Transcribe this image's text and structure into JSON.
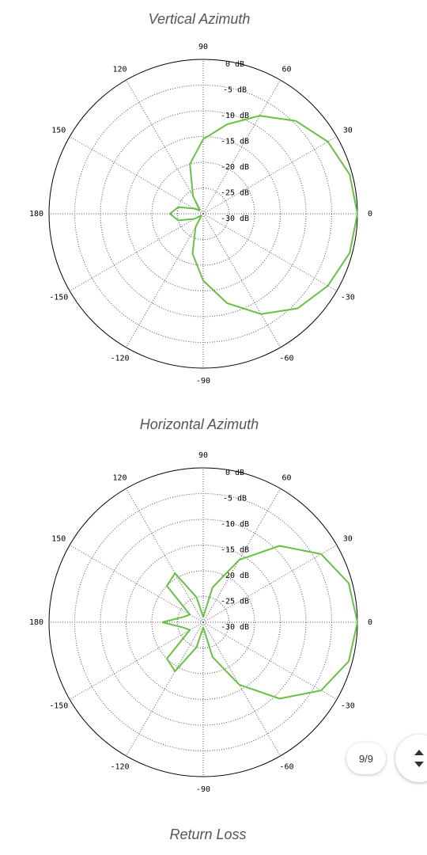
{
  "chart_data": [
    {
      "type": "polar",
      "title": "Vertical Azimuth",
      "theta": [
        -180,
        -165,
        -150,
        -135,
        -120,
        -105,
        -90,
        -75,
        -60,
        -45,
        -30,
        -15,
        0,
        15,
        30,
        45,
        60,
        75,
        90,
        105,
        120,
        135,
        150,
        165,
        180
      ],
      "r": [
        -23.5,
        -25,
        -28,
        -29.5,
        -27,
        -22,
        -17,
        -12,
        -7.5,
        -4,
        -2,
        -0.5,
        0,
        -0.5,
        -2,
        -4.5,
        -8,
        -12,
        -15.5,
        -20,
        -26,
        -29,
        -28,
        -25,
        -23.5
      ],
      "color": "#6abf45",
      "rlim": [
        -30,
        0
      ],
      "rticks": [
        {
          "value": 0,
          "label": "0 dB"
        },
        {
          "value": -5,
          "label": "-5 dB"
        },
        {
          "value": -10,
          "label": "-10 dB"
        },
        {
          "value": -15,
          "label": "-15 dB"
        },
        {
          "value": -20,
          "label": "-20 dB"
        },
        {
          "value": -25,
          "label": "-25 dB"
        },
        {
          "value": -30,
          "label": "-30 dB"
        }
      ],
      "thetaticks": [
        0,
        30,
        60,
        90,
        120,
        150,
        180,
        -150,
        -120,
        -90,
        -60,
        -30
      ],
      "grid": true
    },
    {
      "type": "polar",
      "title": "Horizontal Azimuth",
      "theta": [
        -180,
        -165,
        -150,
        -135,
        -120,
        -105,
        -90,
        -75,
        -60,
        -45,
        -30,
        -15,
        0,
        15,
        30,
        45,
        60,
        75,
        90,
        105,
        120,
        135,
        150,
        165,
        180
      ],
      "r": [
        -22,
        -26,
        -27,
        -20,
        -19,
        -25,
        -29,
        -23,
        -16,
        -9,
        -3.5,
        -0.7,
        0,
        -0.7,
        -3.5,
        -9,
        -16,
        -23,
        -29,
        -25,
        -19,
        -20,
        -27,
        -26,
        -22
      ],
      "color": "#6abf45",
      "rlim": [
        -30,
        0
      ],
      "rticks": [
        {
          "value": 0,
          "label": "0 dB"
        },
        {
          "value": -5,
          "label": "-5 dB"
        },
        {
          "value": -10,
          "label": "-10 dB"
        },
        {
          "value": -15,
          "label": "-15 dB"
        },
        {
          "value": -20,
          "label": "-20 dB"
        },
        {
          "value": -25,
          "label": "-25 dB"
        },
        {
          "value": -30,
          "label": "-30 dB"
        }
      ],
      "thetaticks": [
        0,
        30,
        60,
        90,
        120,
        150,
        180,
        -150,
        -120,
        -90,
        -60,
        -30
      ],
      "grid": true
    }
  ],
  "page": {
    "section_title": "Return Loss",
    "page_indicator": "9/9"
  }
}
